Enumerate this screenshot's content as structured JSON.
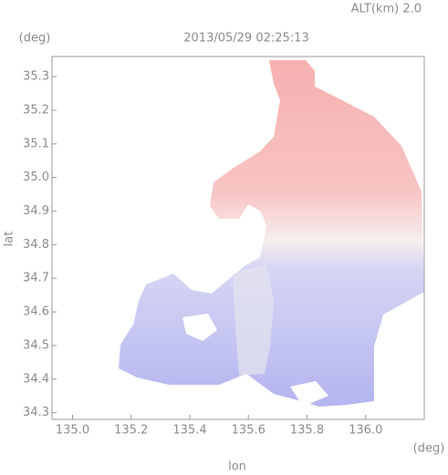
{
  "chart_data": {
    "type": "map",
    "title": "2013/05/29 02:25:13",
    "subtitle": "ALT(km) 2.0",
    "x_label": "lon",
    "y_label": "lat",
    "x_unit": "(deg)",
    "y_unit": "(deg)",
    "xlim": [
      134.93,
      136.2
    ],
    "xticks": [
      {
        "value": 135,
        "label": "135.0"
      },
      135.2,
      135.4,
      135.6,
      135.8,
      {
        "value": 136,
        "label": "136.0"
      }
    ],
    "ylim": [
      34.28,
      35.36
    ],
    "yticks": [
      34.3,
      34.4,
      34.5,
      34.6,
      34.7,
      34.8,
      34.9,
      {
        "value": 35,
        "label": "35.0"
      },
      35.1,
      35.2,
      35.3
    ]
  }
}
